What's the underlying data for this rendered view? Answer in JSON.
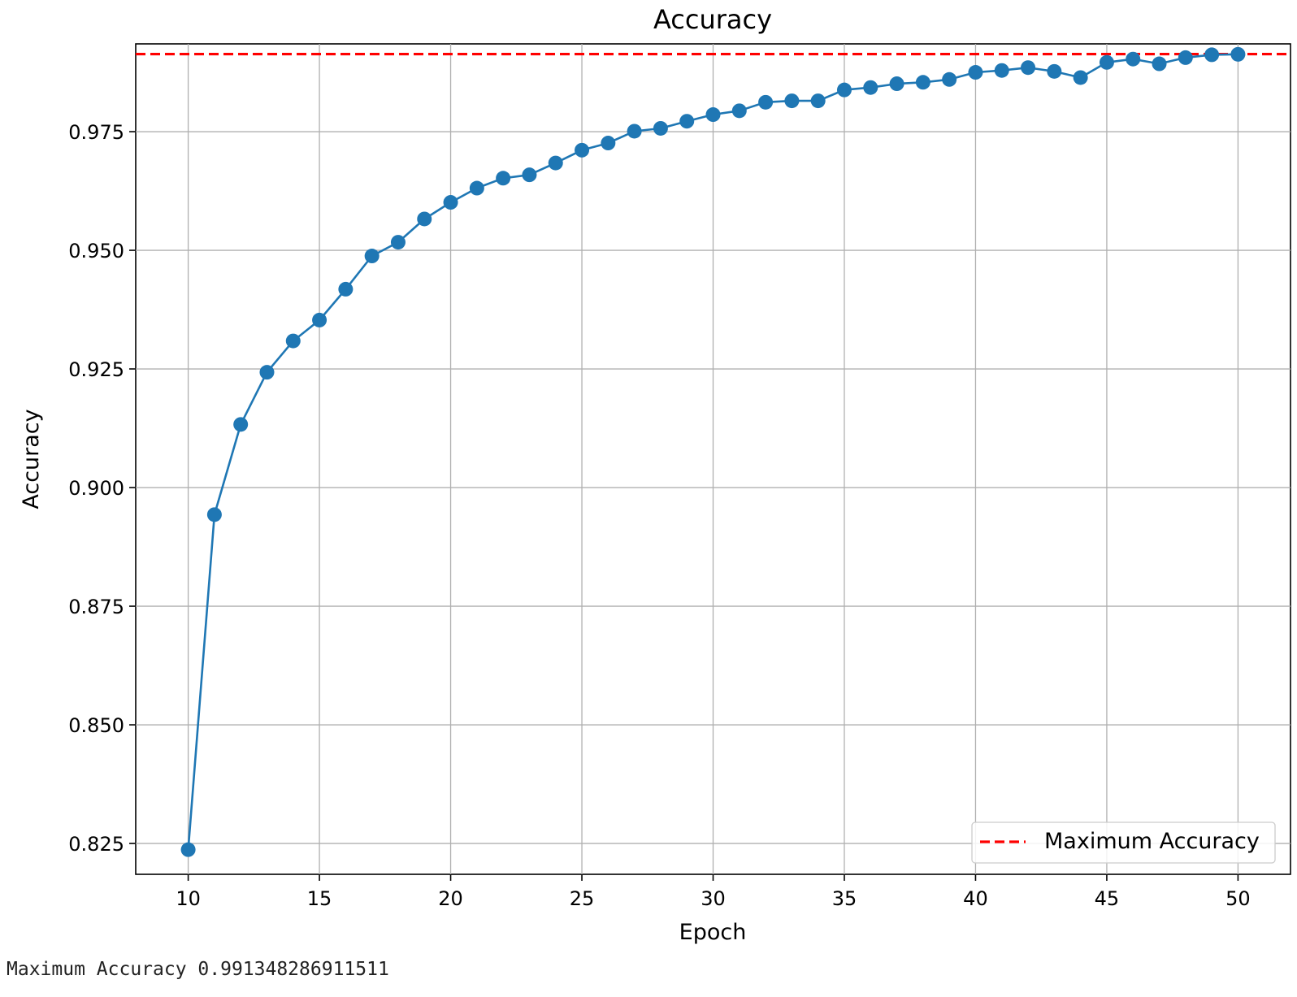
{
  "chart_data": {
    "type": "line",
    "title": "Accuracy",
    "xlabel": "Epoch",
    "ylabel": "Accuracy",
    "xlim": [
      8,
      52
    ],
    "ylim": [
      0.8185,
      0.9935
    ],
    "xticks": [
      10,
      15,
      20,
      25,
      30,
      35,
      40,
      45,
      50
    ],
    "xtick_labels": [
      "10",
      "15",
      "20",
      "25",
      "30",
      "35",
      "40",
      "45",
      "50"
    ],
    "yticks": [
      0.825,
      0.85,
      0.875,
      0.9,
      0.925,
      0.95,
      0.975
    ],
    "ytick_labels": [
      "0.825",
      "0.850",
      "0.875",
      "0.900",
      "0.925",
      "0.950",
      "0.975"
    ],
    "grid": true,
    "legend_position": "lower-right",
    "series": [
      {
        "color": "#1f77b4",
        "marker": "circle",
        "x": [
          10,
          11,
          12,
          13,
          14,
          15,
          16,
          17,
          18,
          19,
          20,
          21,
          22,
          23,
          24,
          25,
          26,
          27,
          28,
          29,
          30,
          31,
          32,
          33,
          34,
          35,
          36,
          37,
          38,
          39,
          40,
          41,
          42,
          43,
          44,
          45,
          46,
          47,
          48,
          49,
          50
        ],
        "y": [
          0.8237,
          0.8943,
          0.9133,
          0.9243,
          0.9309,
          0.9353,
          0.9418,
          0.9488,
          0.9517,
          0.9566,
          0.9601,
          0.9631,
          0.9652,
          0.9659,
          0.9684,
          0.9711,
          0.9726,
          0.9751,
          0.9757,
          0.9772,
          0.9786,
          0.9794,
          0.9812,
          0.9815,
          0.9815,
          0.9838,
          0.9843,
          0.9851,
          0.9854,
          0.986,
          0.9875,
          0.9879,
          0.9885,
          0.9877,
          0.9864,
          0.9896,
          0.9903,
          0.9893,
          0.9906,
          0.9912,
          0.9913
        ]
      }
    ],
    "hlines": [
      {
        "name": "Maximum Accuracy",
        "y": 0.991348286911511,
        "color": "#ff0000",
        "style": "dashed"
      }
    ]
  },
  "output": {
    "text": "Maximum Accuracy 0.991348286911511"
  }
}
